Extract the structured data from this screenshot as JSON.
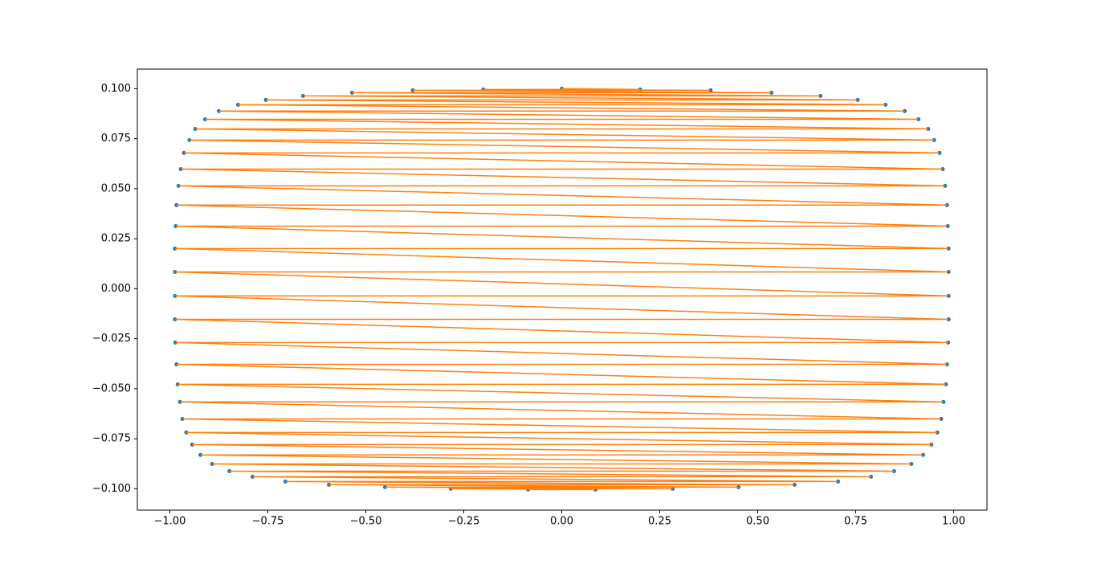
{
  "chart_data": {
    "type": "line",
    "series": [
      {
        "color": "#ff7f0e",
        "marker_color": "#1f77b4",
        "x": [
          0.0,
          0.2,
          -0.2,
          0.38,
          -0.38,
          0.535,
          -0.535,
          0.66,
          -0.66,
          0.755,
          -0.755,
          0.826,
          -0.826,
          0.875,
          -0.875,
          0.91,
          -0.91,
          0.935,
          -0.935,
          0.95,
          -0.95,
          0.964,
          -0.964,
          0.972,
          -0.972,
          0.978,
          -0.978,
          0.983,
          -0.983,
          0.985,
          -0.985,
          0.987,
          -0.987,
          0.987,
          -0.987,
          0.987,
          -0.987,
          0.987,
          -0.987,
          0.986,
          -0.986,
          0.983,
          -0.983,
          0.98,
          -0.98,
          0.974,
          -0.974,
          0.968,
          -0.968,
          0.958,
          -0.958,
          0.943,
          -0.943,
          0.922,
          -0.922,
          0.892,
          -0.892,
          0.848,
          -0.848,
          0.789,
          -0.789,
          0.705,
          -0.705,
          0.594,
          -0.594,
          0.451,
          -0.451,
          0.283,
          -0.283,
          0.086,
          -0.086
        ],
        "y": [
          0.1,
          0.0996,
          0.0996,
          0.0992,
          0.0992,
          0.098,
          0.098,
          0.0964,
          0.0964,
          0.0944,
          0.0944,
          0.092,
          0.092,
          0.0888,
          0.0888,
          0.0847,
          0.0847,
          0.0799,
          0.0799,
          0.0743,
          0.0743,
          0.0679,
          0.0679,
          0.0598,
          0.0598,
          0.0514,
          0.0514,
          0.0418,
          0.0418,
          0.0313,
          0.0313,
          0.0201,
          0.0201,
          0.0084,
          0.0084,
          -0.0036,
          -0.0036,
          -0.0153,
          -0.0153,
          -0.0269,
          -0.0269,
          -0.0378,
          -0.0378,
          -0.0478,
          -0.0478,
          -0.0566,
          -0.0566,
          -0.0651,
          -0.0651,
          -0.0719,
          -0.0719,
          -0.0779,
          -0.0779,
          -0.0831,
          -0.0831,
          -0.0876,
          -0.0876,
          -0.0912,
          -0.0912,
          -0.094,
          -0.094,
          -0.0964,
          -0.0964,
          -0.098,
          -0.098,
          -0.0992,
          -0.0992,
          -0.1,
          -0.1,
          -0.1004,
          -0.1004
        ]
      }
    ],
    "xlim": [
      -1.083,
      1.085
    ],
    "ylim": [
      -0.1107,
      0.1098
    ],
    "xticks": [
      {
        "value": -1,
        "label": "−1.00"
      },
      {
        "value": -0.75,
        "label": "−0.75"
      },
      {
        "value": -0.5,
        "label": "−0.50"
      },
      {
        "value": -0.25,
        "label": "−0.25"
      },
      {
        "value": 0,
        "label": "0.00"
      },
      {
        "value": 0.25,
        "label": "0.25"
      },
      {
        "value": 0.5,
        "label": "0.50"
      },
      {
        "value": 0.75,
        "label": "0.75"
      },
      {
        "value": 1,
        "label": "1.00"
      }
    ],
    "yticks": [
      {
        "value": -0.1,
        "label": "−0.100"
      },
      {
        "value": -0.075,
        "label": "−0.075"
      },
      {
        "value": -0.05,
        "label": "−0.050"
      },
      {
        "value": -0.025,
        "label": "−0.025"
      },
      {
        "value": 0,
        "label": "0.000"
      },
      {
        "value": 0.025,
        "label": "0.025"
      },
      {
        "value": 0.05,
        "label": "0.050"
      },
      {
        "value": 0.075,
        "label": "0.075"
      },
      {
        "value": 0.1,
        "label": "0.100"
      }
    ]
  }
}
